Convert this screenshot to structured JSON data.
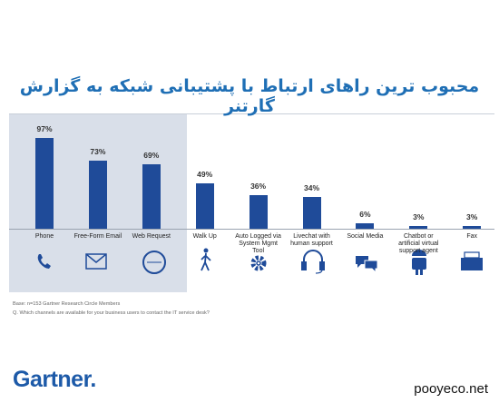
{
  "chart_data": {
    "type": "bar",
    "title": "محبوب ترین راهای ارتباط با پشتیبانی شبکه به گزارش گارتنر",
    "categories": [
      "Phone",
      "Free-Form Email",
      "Web Request",
      "Walk Up",
      "Auto Logged via System Mgmt Tool",
      "Livechat with human support",
      "Social Media",
      "Chatbot or artificial virtual support agent",
      "Fax"
    ],
    "values": [
      97,
      73,
      69,
      49,
      36,
      34,
      6,
      3,
      3
    ],
    "value_labels": [
      "97%",
      "73%",
      "69%",
      "49%",
      "36%",
      "34%",
      "6%",
      "3%",
      "3%"
    ],
    "color": "#1f4b99",
    "ylim": [
      0,
      100
    ],
    "notes": [
      "Base: n=153 Gartner Research Circle Members",
      "Q. Which channels are available for your business users to contact the IT service desk?"
    ]
  },
  "brand": "Gartner.",
  "watermark": "pooyeco.net"
}
